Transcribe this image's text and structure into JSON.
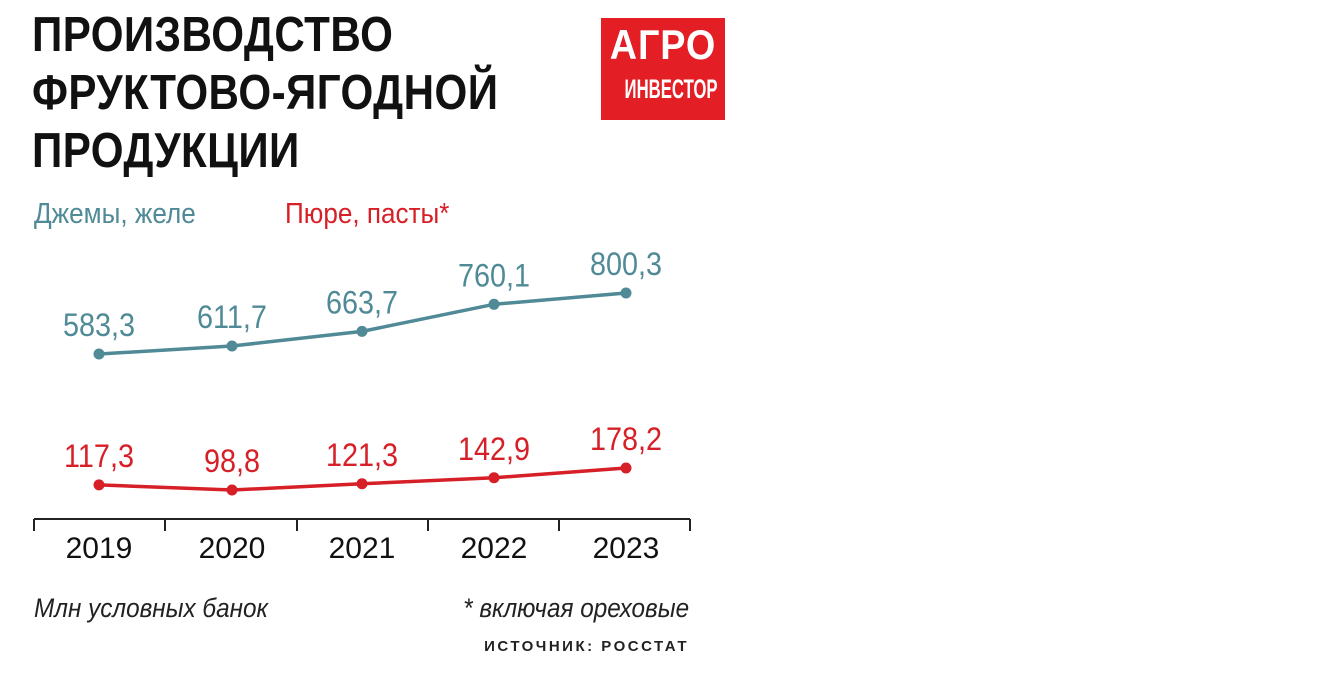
{
  "header": {
    "title_lines": [
      "ПРОИЗВОДСТВО",
      "ФРУКТОВО-ЯГОДНОЙ",
      "ПРОДУКЦИИ"
    ],
    "logo_line1": "АГРО",
    "logo_line2": "ИНВЕСТОР"
  },
  "colors": {
    "jams": "#4f8a96",
    "puree": "#d61f26",
    "text": "#111111",
    "logo_bg": "#e31e24"
  },
  "chart_data": {
    "type": "line",
    "title": "ПРОИЗВОДСТВО ФРУКТОВО-ЯГОДНОЙ ПРОДУКЦИИ",
    "x": [
      "2019",
      "2020",
      "2021",
      "2022",
      "2023"
    ],
    "series": [
      {
        "name": "Джемы, желе",
        "values": [
          583.3,
          611.7,
          663.7,
          760.1,
          800.3
        ],
        "labels": [
          "583,3",
          "611,7",
          "663,7",
          "760,1",
          "800,3"
        ]
      },
      {
        "name": "Пюре, пасты*",
        "values": [
          117.3,
          98.8,
          121.3,
          142.9,
          178.2
        ],
        "labels": [
          "117,3",
          "98,8",
          "121,3",
          "142,9",
          "178,2"
        ]
      }
    ],
    "unit": "Млн условных банок",
    "grid": false,
    "legend": "top-left"
  },
  "footer": {
    "unit_note": "Млн условных банок",
    "asterisk_note": "* включая ореховые",
    "source": "ИСТОЧНИК: РОССТАТ"
  }
}
